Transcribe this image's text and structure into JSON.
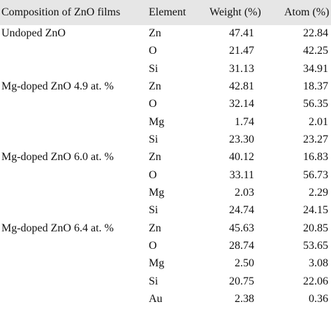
{
  "table": {
    "header": [
      "Composition of ZnO films",
      "Element",
      "Weight (%)",
      "Atom (%)"
    ],
    "groups": [
      {
        "composition": "Undoped ZnO",
        "rows": [
          [
            "Zn",
            "47.41",
            "22.84"
          ],
          [
            "O",
            "21.47",
            "42.25"
          ],
          [
            "Si",
            "31.13",
            "34.91"
          ]
        ]
      },
      {
        "composition": "Mg-doped ZnO 4.9 at. %",
        "rows": [
          [
            "Zn",
            "42.81",
            "18.37"
          ],
          [
            "O",
            "32.14",
            "56.35"
          ],
          [
            "Mg",
            "1.74",
            "2.01"
          ],
          [
            "Si",
            "23.30",
            "23.27"
          ]
        ]
      },
      {
        "composition": "Mg-doped ZnO 6.0 at. %",
        "rows": [
          [
            "Zn",
            "40.12",
            "16.83"
          ],
          [
            "O",
            "33.11",
            "56.73"
          ],
          [
            "Mg",
            "2.03",
            "2.29"
          ],
          [
            "Si",
            "24.74",
            "24.15"
          ]
        ]
      },
      {
        "composition": "Mg-doped ZnO 6.4 at. %",
        "rows": [
          [
            "Zn",
            "45.63",
            "20.85"
          ],
          [
            "O",
            "28.74",
            "53.65"
          ],
          [
            "Mg",
            "2.50",
            "3.08"
          ],
          [
            "Si",
            "20.75",
            "22.06"
          ],
          [
            "Au",
            "2.38",
            "0.36"
          ]
        ]
      }
    ]
  }
}
